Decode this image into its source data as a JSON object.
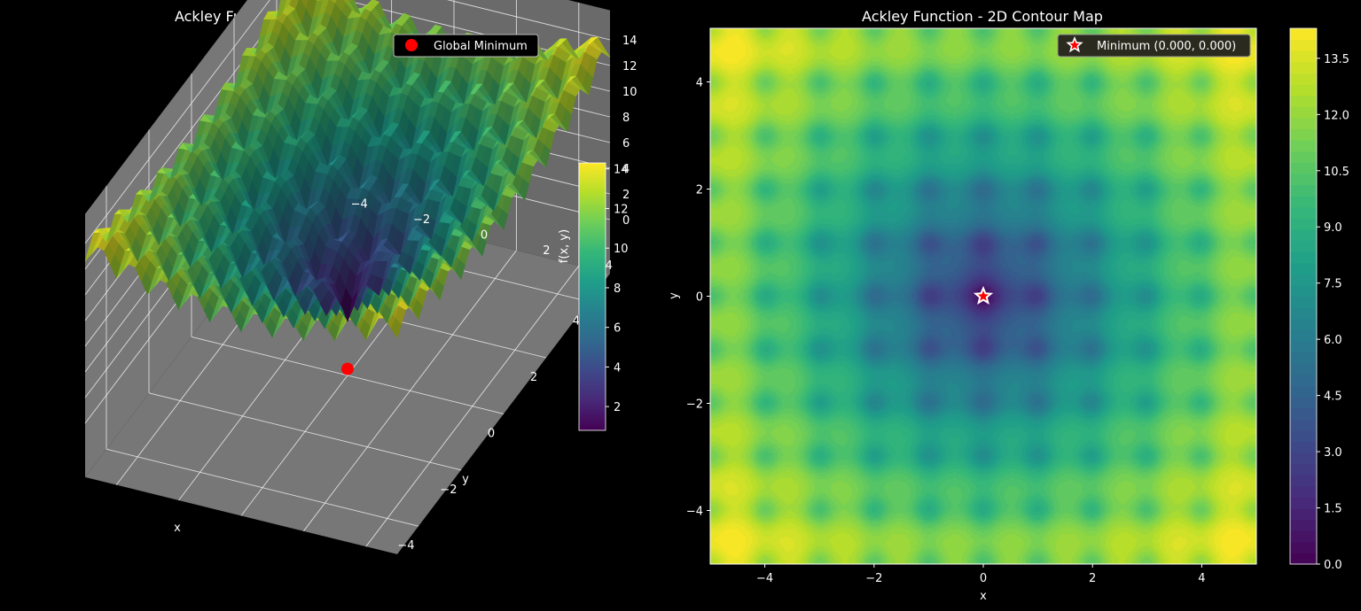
{
  "colors": {
    "background": "#000000",
    "pane": "#777777",
    "pane_dark": "#6a6a6a",
    "grid": "#ffffff",
    "marker": "#ff0000",
    "text": "#ffffff",
    "colormap": [
      "#440154",
      "#482878",
      "#3e4989",
      "#31688e",
      "#26828e",
      "#1f9e89",
      "#35b779",
      "#6ece58",
      "#b5de2b",
      "#fde725"
    ]
  },
  "chart_data": [
    {
      "type": "surface",
      "title": "Ackley Function - 3D Surface",
      "function": "ackley",
      "xlabel": "x",
      "ylabel": "y",
      "zlabel": "f(x, y)",
      "xlim": [
        -5,
        5
      ],
      "ylim": [
        -5,
        5
      ],
      "zlim": [
        0,
        14
      ],
      "x_ticks": [
        "−4",
        "−2",
        "0",
        "2",
        "4"
      ],
      "y_ticks": [
        "4",
        "2",
        "0",
        "−2",
        "−4"
      ],
      "z_ticks": [
        "0",
        "2",
        "4",
        "6",
        "8",
        "10",
        "12",
        "14"
      ],
      "colorbar": {
        "ticks": [
          "2",
          "4",
          "6",
          "8",
          "10",
          "12",
          "14"
        ],
        "range": [
          0.8,
          14.3
        ]
      },
      "legend": {
        "position": "top-right",
        "entries": [
          "Global Minimum"
        ]
      },
      "global_minimum": {
        "x": 0,
        "y": 0,
        "z": 0
      },
      "grid": true
    },
    {
      "type": "contour",
      "title": "Ackley Function - 2D Contour Map",
      "function": "ackley",
      "xlabel": "x",
      "ylabel": "y",
      "xlim": [
        -5,
        5
      ],
      "ylim": [
        -5,
        5
      ],
      "x_ticks": [
        "−4",
        "−2",
        "0",
        "2",
        "4"
      ],
      "y_ticks": [
        "4",
        "2",
        "0",
        "−2",
        "−4"
      ],
      "levels": 50,
      "colorbar": {
        "ticks": [
          "0.0",
          "1.5",
          "3.0",
          "4.5",
          "6.0",
          "7.5",
          "9.0",
          "10.5",
          "12.0",
          "13.5"
        ],
        "range": [
          0,
          14.3
        ]
      },
      "legend": {
        "position": "top-right",
        "entries": [
          "Minimum (0.000, 0.000)"
        ]
      },
      "minimum": {
        "x": 0,
        "y": 0
      },
      "grid": false
    }
  ]
}
